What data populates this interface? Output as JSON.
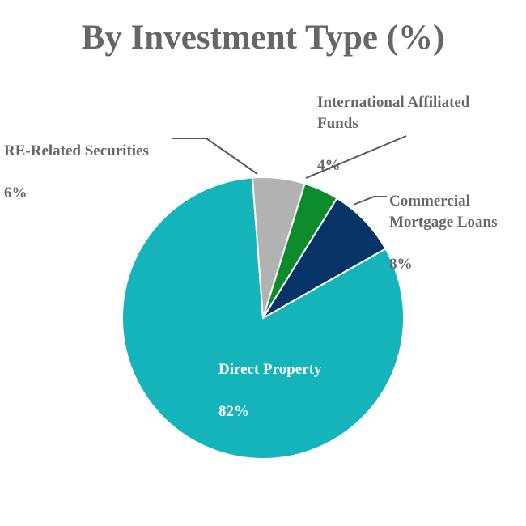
{
  "chart_data": {
    "type": "pie",
    "title": "By Investment Type (%)",
    "slices": [
      {
        "name": "Direct Property",
        "value": 82,
        "label": "82%",
        "color": "#14b4ba"
      },
      {
        "name": "RE-Related Securities",
        "value": 6,
        "label": "6%",
        "color": "#b2b2b2"
      },
      {
        "name": "International Affiliated Funds",
        "value": 4,
        "label": "4%",
        "color": "#0c8b2a"
      },
      {
        "name": "Commercial Mortgage Loans",
        "value": 8,
        "label": "8%",
        "color": "#063466"
      }
    ],
    "data_labels": [
      {
        "name": "Direct Property",
        "pct": "82%"
      },
      {
        "name": "RE-Related Securities",
        "pct": "6%"
      },
      {
        "name": "International Affiliated\nFunds",
        "pct": "4%"
      },
      {
        "name": "Commercial\nMortgage Loans",
        "pct": "8%"
      }
    ]
  }
}
